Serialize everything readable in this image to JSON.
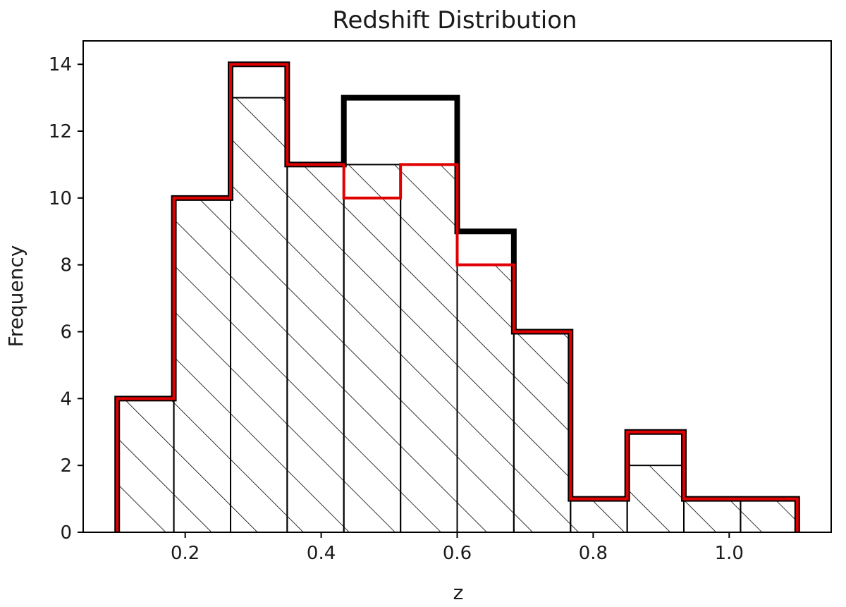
{
  "chart_data": {
    "type": "bar",
    "title": "Redshift Distribution",
    "xlabel": "z",
    "ylabel": "Frequency",
    "xlim": [
      0.05,
      1.15
    ],
    "ylim": [
      0,
      14.7
    ],
    "xticks": [
      0.2,
      0.4,
      0.6,
      0.8,
      1.0
    ],
    "xtick_labels": [
      "0.2",
      "0.4",
      "0.6",
      "0.8",
      "1.0"
    ],
    "yticks": [
      0,
      2,
      4,
      6,
      8,
      10,
      12,
      14
    ],
    "ytick_labels": [
      "0",
      "2",
      "4",
      "6",
      "8",
      "10",
      "12",
      "14"
    ],
    "bin_edges": [
      0.1,
      0.1833,
      0.2667,
      0.35,
      0.4333,
      0.5167,
      0.6,
      0.6833,
      0.7667,
      0.85,
      0.9333,
      1.0167,
      1.1
    ],
    "grid": false,
    "series": [
      {
        "style": "hatched-filled",
        "color": "#000000",
        "values": [
          4,
          10,
          13,
          11,
          11,
          11,
          8,
          6,
          1,
          2,
          1,
          1
        ]
      },
      {
        "style": "step-thick",
        "color": "#000000",
        "values": [
          4,
          10,
          14,
          11,
          13,
          13,
          9,
          6,
          1,
          3,
          1,
          1
        ]
      },
      {
        "style": "step",
        "color": "#e00000",
        "values": [
          4,
          10,
          14,
          11,
          10,
          11,
          8,
          6,
          1,
          3,
          1,
          1
        ]
      }
    ]
  }
}
